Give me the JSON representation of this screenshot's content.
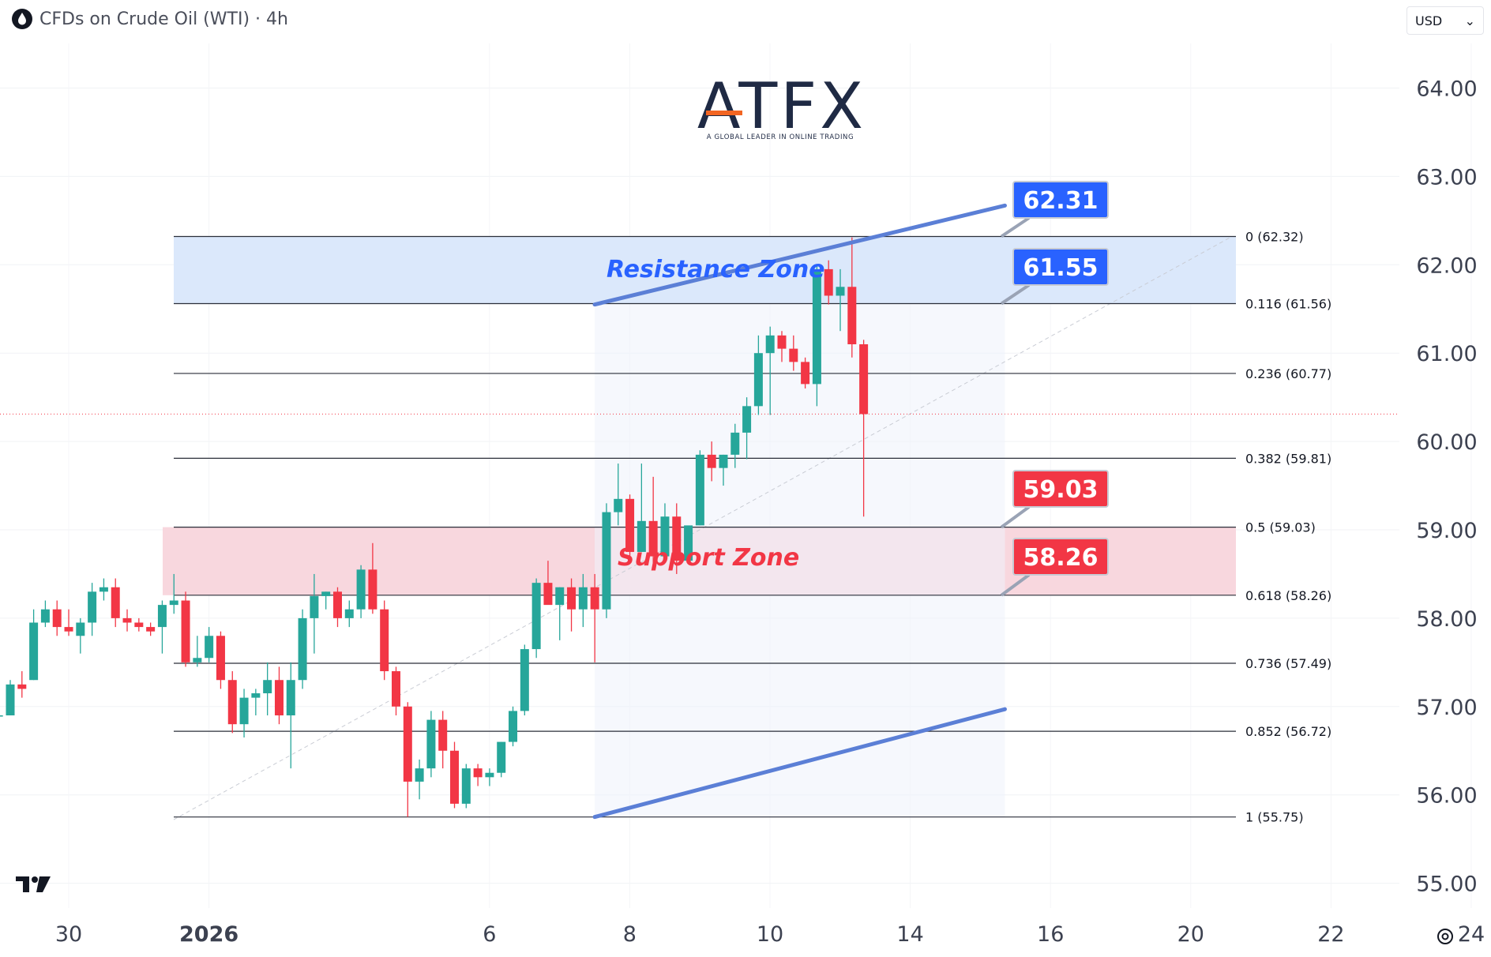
{
  "header": {
    "title": "CFDs on Crude Oil (WTI) · 4h",
    "currency": "USD",
    "currency_caret": "⌄"
  },
  "logo": {
    "wordmark": "ATFX",
    "tagline": "A GLOBAL LEADER IN ONLINE TRADING",
    "accent_color": "#f26522",
    "brand_color": "#1f2a44"
  },
  "colors": {
    "up": "#26a69a",
    "down": "#f23645",
    "resistance_fill": "#dbe8fb",
    "support_fill": "#f8d7de",
    "channel": "#5b7fd6",
    "resistance_text": "#2962ff",
    "support_text": "#f23645",
    "callout_blue": "#2962ff",
    "callout_red": "#f23645"
  },
  "annotations": {
    "resistance_label": "Resistance Zone",
    "support_label": "Support Zone",
    "price_callouts": [
      "62.31",
      "61.55",
      "59.03",
      "58.26"
    ]
  },
  "chart_data": {
    "type": "candlestick",
    "title": "CFDs on Crude Oil (WTI) · 4h",
    "timeframe": "4h",
    "currency": "USD",
    "y_range": [
      54.8,
      65.0
    ],
    "y_ticks": [
      "64.00",
      "63.00",
      "62.00",
      "61.00",
      "60.00",
      "59.00",
      "58.00",
      "57.00",
      "56.00",
      "55.00"
    ],
    "y_tick_values": [
      64,
      63,
      62,
      61,
      60,
      59,
      58,
      57,
      56,
      55
    ],
    "x_ticks": [
      "30",
      "2026",
      "6",
      "8",
      "10",
      "14",
      "16",
      "20",
      "22",
      "24"
    ],
    "x_tick_days": [
      30,
      32,
      36,
      38,
      40,
      42,
      44,
      46,
      48,
      50
    ],
    "x_range_days": [
      29.0,
      51.4
    ],
    "candle_day_step": 0.1667,
    "current_price": 60.31,
    "fibonacci": [
      {
        "level": "0",
        "price": 62.32,
        "label": "0 (62.32)"
      },
      {
        "level": "0.116",
        "price": 61.56,
        "label": "0.116 (61.56)"
      },
      {
        "level": "0.236",
        "price": 60.77,
        "label": "0.236 (60.77)"
      },
      {
        "level": "0.382",
        "price": 59.81,
        "label": "0.382 (59.81)"
      },
      {
        "level": "0.5",
        "price": 59.03,
        "label": "0.5 (59.03)"
      },
      {
        "level": "0.618",
        "price": 58.26,
        "label": "0.618 (58.26)"
      },
      {
        "level": "0.736",
        "price": 57.49,
        "label": "0.736 (57.49)"
      },
      {
        "level": "0.852",
        "price": 56.72,
        "label": "0.852 (56.72)"
      },
      {
        "level": "1",
        "price": 55.75,
        "label": "1 (55.75)"
      }
    ],
    "zones": [
      {
        "name": "Resistance Zone",
        "from": 61.56,
        "to": 62.32
      },
      {
        "name": "Support Zone",
        "from": 58.26,
        "to": 59.03
      }
    ],
    "channel": {
      "upper": {
        "start_day": 37.5,
        "start_price": 61.55,
        "end_day": 43.35,
        "end_price": 62.67
      },
      "lower": {
        "start_day": 37.5,
        "start_price": 55.75,
        "end_day": 43.35,
        "end_price": 56.97
      }
    },
    "candles": [
      {
        "o": 56.9,
        "h": 57.1,
        "l": 56.9,
        "c": 56.9
      },
      {
        "o": 56.9,
        "h": 57.3,
        "l": 56.9,
        "c": 57.25
      },
      {
        "o": 57.25,
        "h": 57.4,
        "l": 57.1,
        "c": 57.2
      },
      {
        "o": 57.3,
        "h": 58.1,
        "l": 57.3,
        "c": 57.95
      },
      {
        "o": 57.95,
        "h": 58.2,
        "l": 57.9,
        "c": 58.1
      },
      {
        "o": 58.1,
        "h": 58.2,
        "l": 57.8,
        "c": 57.9
      },
      {
        "o": 57.9,
        "h": 58.1,
        "l": 57.8,
        "c": 57.85
      },
      {
        "o": 57.8,
        "h": 58.0,
        "l": 57.6,
        "c": 57.95
      },
      {
        "o": 57.95,
        "h": 58.4,
        "l": 57.8,
        "c": 58.3
      },
      {
        "o": 58.3,
        "h": 58.45,
        "l": 58.2,
        "c": 58.35
      },
      {
        "o": 58.35,
        "h": 58.45,
        "l": 57.9,
        "c": 58.0
      },
      {
        "o": 58.0,
        "h": 58.1,
        "l": 57.85,
        "c": 57.95
      },
      {
        "o": 57.95,
        "h": 58.0,
        "l": 57.85,
        "c": 57.9
      },
      {
        "o": 57.9,
        "h": 57.95,
        "l": 57.8,
        "c": 57.85
      },
      {
        "o": 57.9,
        "h": 58.2,
        "l": 57.6,
        "c": 58.15
      },
      {
        "o": 58.15,
        "h": 58.5,
        "l": 58.05,
        "c": 58.2
      },
      {
        "o": 58.2,
        "h": 58.3,
        "l": 57.45,
        "c": 57.5
      },
      {
        "o": 57.5,
        "h": 57.8,
        "l": 57.45,
        "c": 57.55
      },
      {
        "o": 57.55,
        "h": 57.9,
        "l": 57.5,
        "c": 57.8
      },
      {
        "o": 57.8,
        "h": 57.85,
        "l": 57.2,
        "c": 57.3
      },
      {
        "o": 57.3,
        "h": 57.4,
        "l": 56.7,
        "c": 56.8
      },
      {
        "o": 56.8,
        "h": 57.2,
        "l": 56.65,
        "c": 57.1
      },
      {
        "o": 57.1,
        "h": 57.2,
        "l": 56.9,
        "c": 57.15
      },
      {
        "o": 57.15,
        "h": 57.5,
        "l": 56.9,
        "c": 57.3
      },
      {
        "o": 57.3,
        "h": 57.45,
        "l": 56.8,
        "c": 56.9
      },
      {
        "o": 56.9,
        "h": 57.5,
        "l": 56.3,
        "c": 57.3
      },
      {
        "o": 57.3,
        "h": 58.1,
        "l": 57.2,
        "c": 58.0
      },
      {
        "o": 58.0,
        "h": 58.5,
        "l": 57.6,
        "c": 58.25
      },
      {
        "o": 58.25,
        "h": 58.3,
        "l": 58.1,
        "c": 58.3
      },
      {
        "o": 58.3,
        "h": 58.35,
        "l": 57.9,
        "c": 58.0
      },
      {
        "o": 58.0,
        "h": 58.2,
        "l": 57.9,
        "c": 58.1
      },
      {
        "o": 58.1,
        "h": 58.6,
        "l": 58.0,
        "c": 58.55
      },
      {
        "o": 58.55,
        "h": 58.85,
        "l": 58.05,
        "c": 58.1
      },
      {
        "o": 58.1,
        "h": 58.2,
        "l": 57.3,
        "c": 57.4
      },
      {
        "o": 57.4,
        "h": 57.45,
        "l": 56.9,
        "c": 57.0
      },
      {
        "o": 57.0,
        "h": 57.05,
        "l": 55.75,
        "c": 56.15
      },
      {
        "o": 56.15,
        "h": 56.4,
        "l": 55.95,
        "c": 56.3
      },
      {
        "o": 56.3,
        "h": 56.95,
        "l": 56.2,
        "c": 56.85
      },
      {
        "o": 56.85,
        "h": 56.95,
        "l": 56.3,
        "c": 56.5
      },
      {
        "o": 56.5,
        "h": 56.6,
        "l": 55.85,
        "c": 55.9
      },
      {
        "o": 55.9,
        "h": 56.35,
        "l": 55.85,
        "c": 56.3
      },
      {
        "o": 56.3,
        "h": 56.35,
        "l": 56.1,
        "c": 56.2
      },
      {
        "o": 56.2,
        "h": 56.3,
        "l": 56.1,
        "c": 56.25
      },
      {
        "o": 56.25,
        "h": 56.6,
        "l": 56.2,
        "c": 56.6
      },
      {
        "o": 56.6,
        "h": 57.0,
        "l": 56.55,
        "c": 56.95
      },
      {
        "o": 56.95,
        "h": 57.7,
        "l": 56.9,
        "c": 57.65
      },
      {
        "o": 57.65,
        "h": 58.45,
        "l": 57.55,
        "c": 58.4
      },
      {
        "o": 58.4,
        "h": 58.65,
        "l": 58.2,
        "c": 58.15
      },
      {
        "o": 58.15,
        "h": 58.35,
        "l": 57.75,
        "c": 58.35
      },
      {
        "o": 58.35,
        "h": 58.45,
        "l": 57.85,
        "c": 58.1
      },
      {
        "o": 58.1,
        "h": 58.5,
        "l": 57.9,
        "c": 58.35
      },
      {
        "o": 58.35,
        "h": 58.5,
        "l": 57.5,
        "c": 58.1
      },
      {
        "o": 58.1,
        "h": 59.3,
        "l": 58.0,
        "c": 59.2
      },
      {
        "o": 59.2,
        "h": 59.75,
        "l": 59.05,
        "c": 59.35
      },
      {
        "o": 59.35,
        "h": 59.4,
        "l": 58.7,
        "c": 58.75
      },
      {
        "o": 58.75,
        "h": 59.75,
        "l": 58.75,
        "c": 59.1
      },
      {
        "o": 59.1,
        "h": 59.6,
        "l": 58.6,
        "c": 58.7
      },
      {
        "o": 58.7,
        "h": 59.3,
        "l": 58.65,
        "c": 59.15
      },
      {
        "o": 59.15,
        "h": 59.3,
        "l": 58.5,
        "c": 58.65
      },
      {
        "o": 58.65,
        "h": 58.95,
        "l": 58.65,
        "c": 59.05
      },
      {
        "o": 59.05,
        "h": 59.9,
        "l": 59.05,
        "c": 59.85
      },
      {
        "o": 59.85,
        "h": 60.0,
        "l": 59.55,
        "c": 59.7
      },
      {
        "o": 59.7,
        "h": 59.85,
        "l": 59.5,
        "c": 59.85
      },
      {
        "o": 59.85,
        "h": 60.2,
        "l": 59.7,
        "c": 60.1
      },
      {
        "o": 60.1,
        "h": 60.5,
        "l": 59.8,
        "c": 60.4
      },
      {
        "o": 60.4,
        "h": 61.2,
        "l": 60.3,
        "c": 61.0
      },
      {
        "o": 61.0,
        "h": 61.3,
        "l": 60.3,
        "c": 61.2
      },
      {
        "o": 61.2,
        "h": 61.25,
        "l": 60.9,
        "c": 61.05
      },
      {
        "o": 61.05,
        "h": 61.2,
        "l": 60.8,
        "c": 60.9
      },
      {
        "o": 60.9,
        "h": 60.95,
        "l": 60.6,
        "c": 60.65
      },
      {
        "o": 60.65,
        "h": 62.0,
        "l": 60.4,
        "c": 61.95
      },
      {
        "o": 61.95,
        "h": 62.05,
        "l": 61.55,
        "c": 61.65
      },
      {
        "o": 61.65,
        "h": 61.95,
        "l": 61.25,
        "c": 61.75
      },
      {
        "o": 61.75,
        "h": 62.31,
        "l": 60.95,
        "c": 61.1
      },
      {
        "o": 61.1,
        "h": 61.15,
        "l": 59.15,
        "c": 60.31
      }
    ]
  }
}
